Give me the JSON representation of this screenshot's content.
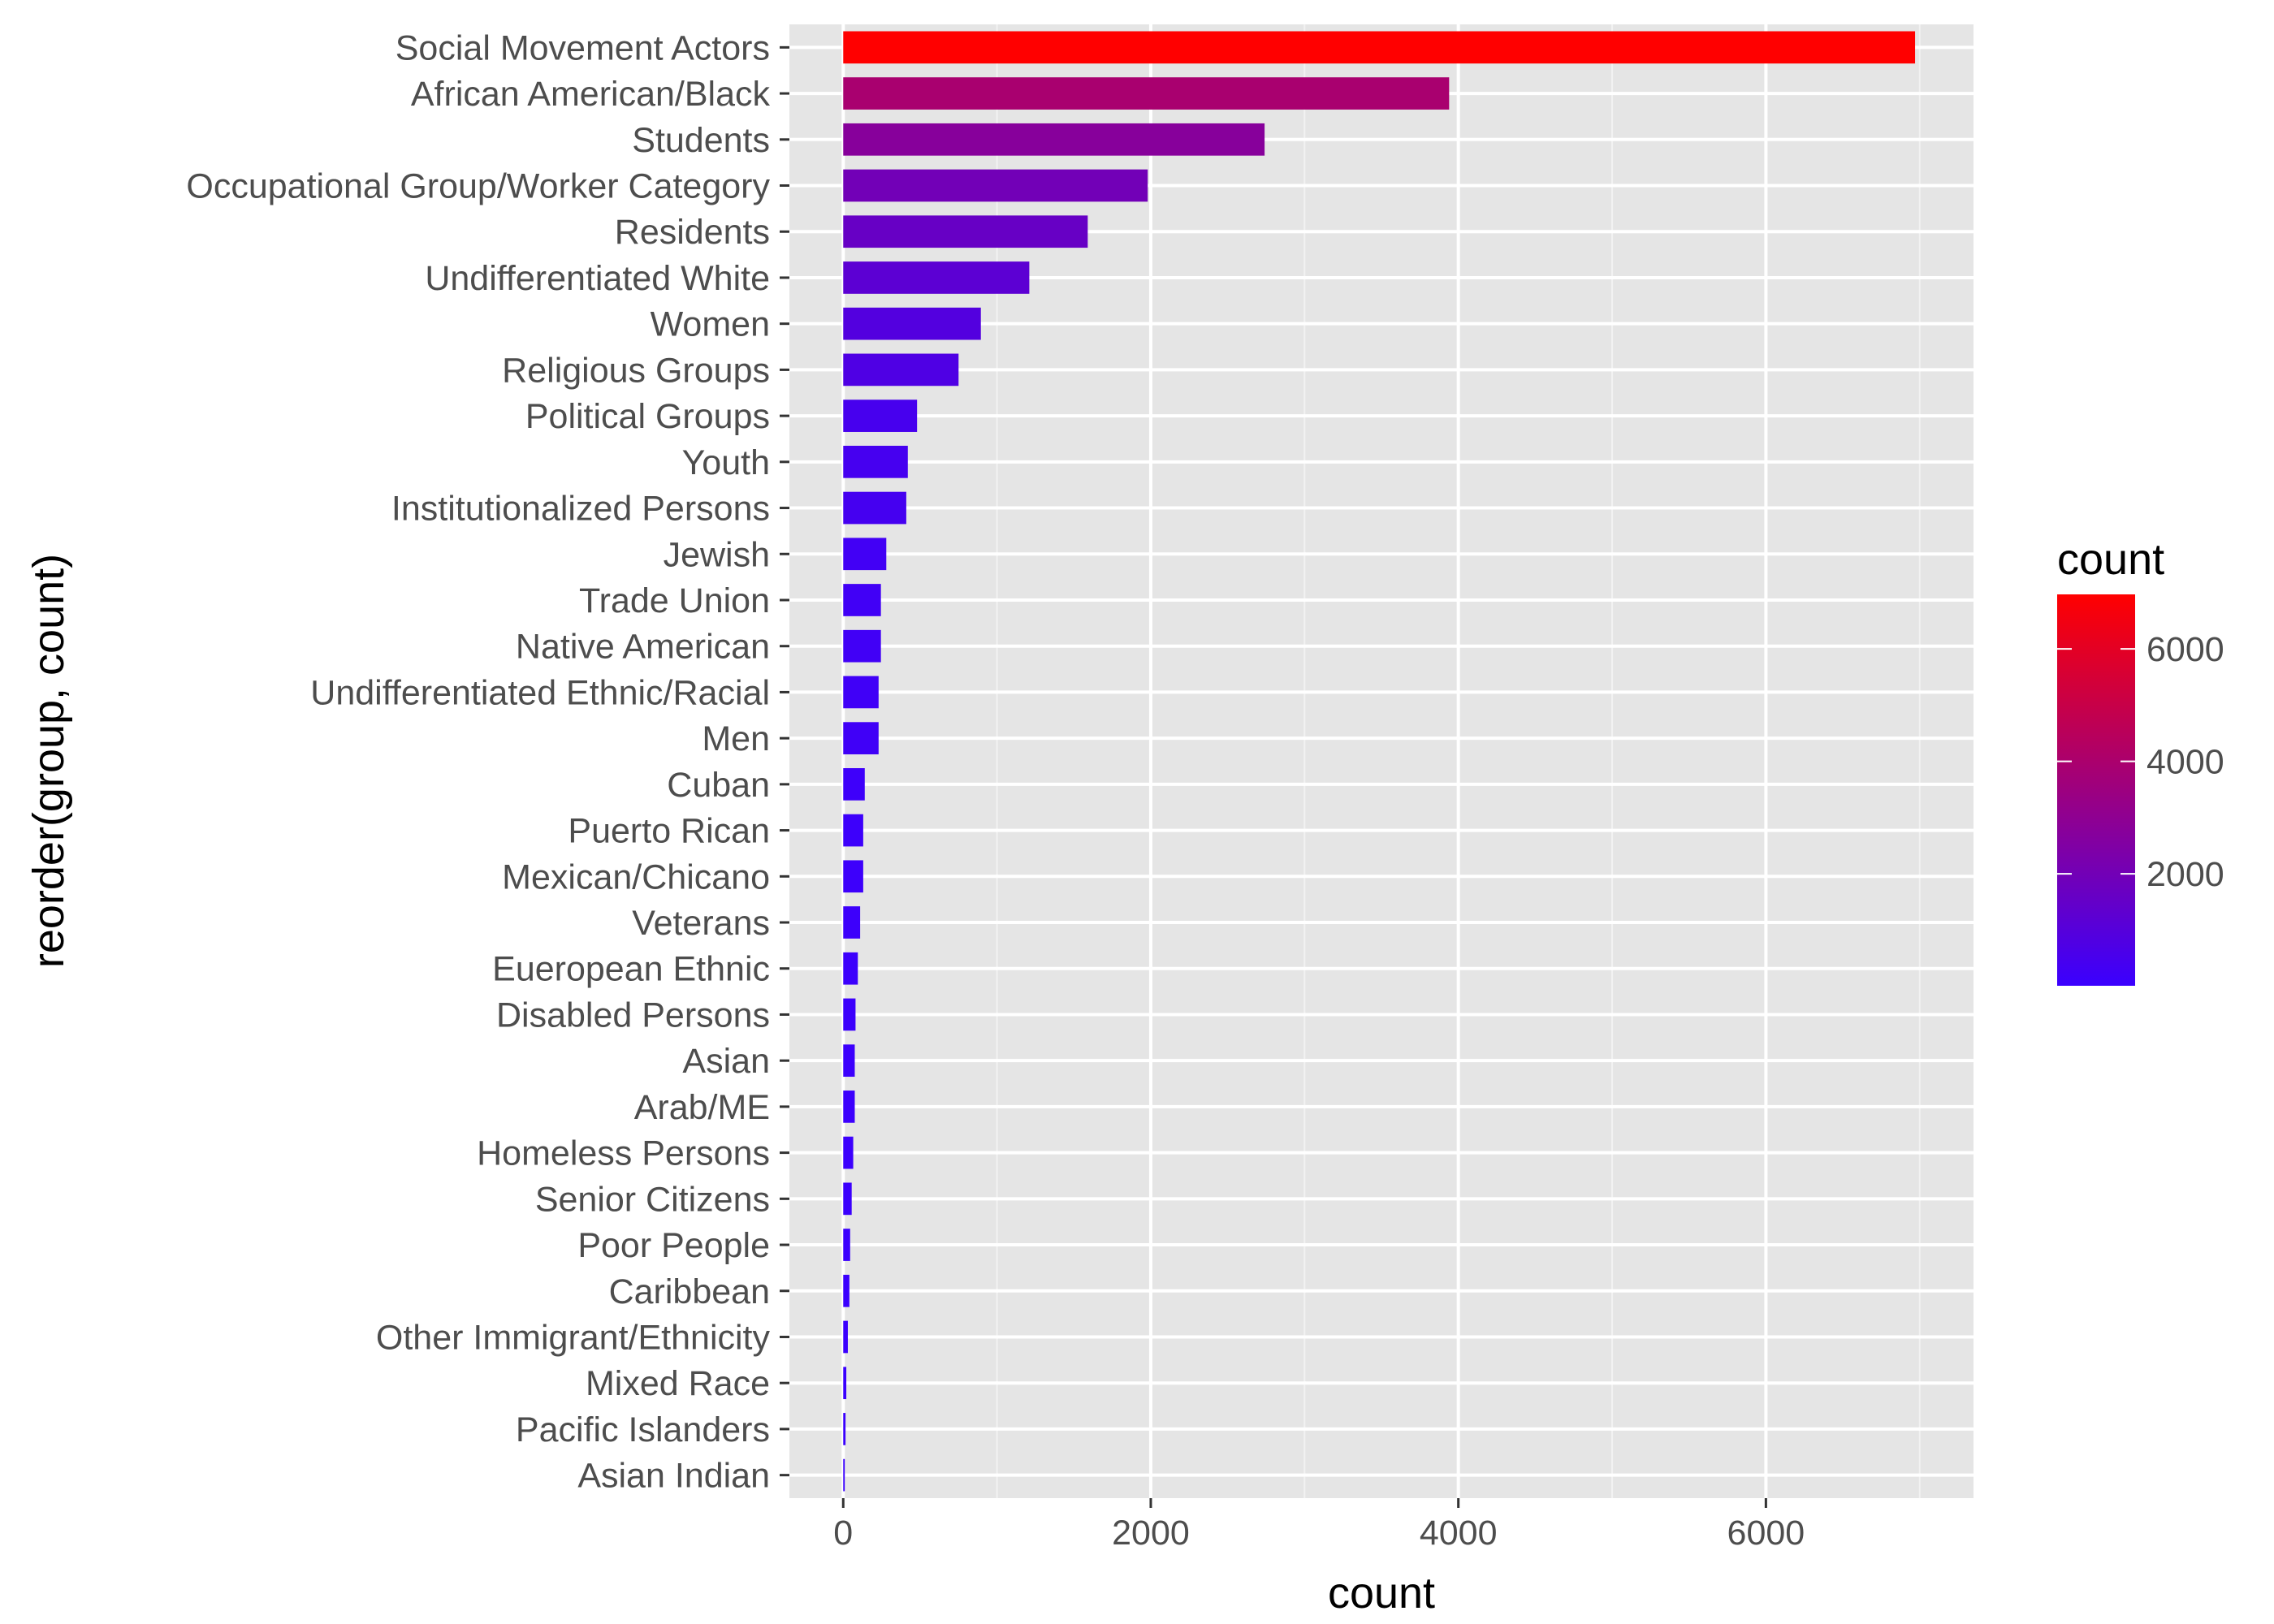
{
  "chart_data": {
    "type": "bar",
    "orientation": "horizontal",
    "xlabel": "count",
    "ylabel": "reorder(group, count)",
    "xlim": [
      -350,
      7350
    ],
    "x_ticks": [
      0,
      2000,
      4000,
      6000
    ],
    "grid": true,
    "categories": [
      "Social Movement Actors",
      "African American/Black",
      "Students",
      "Occupational Group/Worker Category",
      "Residents",
      "Undifferentiated White",
      "Women",
      "Religious Groups",
      "Political Groups",
      "Youth",
      "Institutionalized Persons",
      "Jewish",
      "Trade Union",
      "Native American",
      "Undifferentiated Ethnic/Racial",
      "Men",
      "Cuban",
      "Puerto Rican",
      "Mexican/Chicano",
      "Veterans",
      "Eueropean Ethnic",
      "Disabled Persons",
      "Asian",
      "Arab/ME",
      "Homeless Persons",
      "Senior Citizens",
      "Poor People",
      "Caribbean",
      "Other Immigrant/Ethnicity",
      "Mixed Race",
      "Pacific Islanders",
      "Asian Indian"
    ],
    "values": [
      6970,
      3940,
      2740,
      1980,
      1590,
      1210,
      895,
      750,
      480,
      420,
      410,
      280,
      245,
      245,
      230,
      230,
      140,
      130,
      130,
      110,
      95,
      80,
      75,
      75,
      65,
      55,
      45,
      40,
      30,
      20,
      15,
      10
    ],
    "color_scale": {
      "low": "#3a00ff",
      "high": "#ff0000",
      "domain": [
        10,
        6970
      ]
    },
    "legend": {
      "title": "count",
      "position": "right",
      "ticks": [
        2000,
        4000,
        6000
      ]
    }
  }
}
